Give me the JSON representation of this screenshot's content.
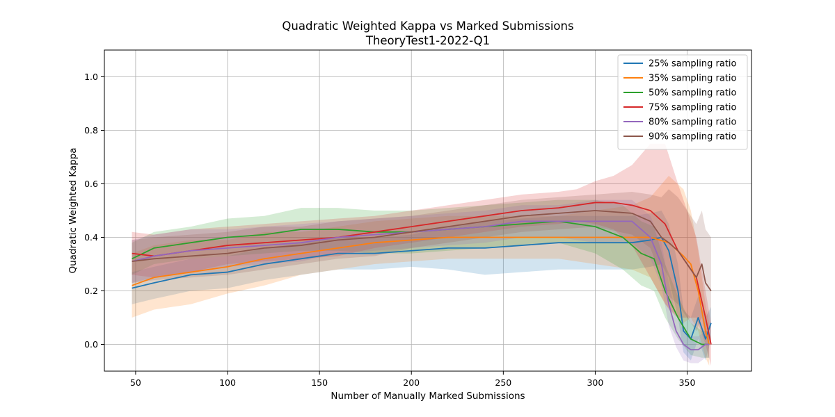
{
  "chart_data": {
    "type": "line",
    "title": "Quadratic Weighted Kappa vs Marked Submissions",
    "subtitle": "TheoryTest1-2022-Q1",
    "xlabel": "Number of Manually Marked Submissions",
    "ylabel": "Quadratic Weighted Kappa",
    "xlim": [
      33,
      385
    ],
    "ylim": [
      -0.1,
      1.1
    ],
    "xticks": [
      50,
      100,
      150,
      200,
      250,
      300,
      350
    ],
    "yticks": [
      0.0,
      0.2,
      0.4,
      0.6,
      0.8,
      1.0
    ],
    "grid": true,
    "legend_position": "top-right",
    "series": [
      {
        "name": "25% sampling ratio",
        "color": "#1f77b4",
        "x": [
          48,
          60,
          80,
          100,
          120,
          140,
          160,
          180,
          200,
          220,
          240,
          260,
          280,
          300,
          320,
          330,
          336,
          340,
          345,
          348,
          352,
          356,
          360,
          363
        ],
        "y": [
          0.21,
          0.23,
          0.26,
          0.27,
          0.3,
          0.32,
          0.34,
          0.34,
          0.35,
          0.36,
          0.36,
          0.37,
          0.38,
          0.38,
          0.38,
          0.39,
          0.4,
          0.35,
          0.2,
          0.05,
          0.02,
          0.1,
          0.02,
          0.08
        ],
        "band": [
          0.06,
          0.06,
          0.06,
          0.06,
          0.06,
          0.06,
          0.06,
          0.06,
          0.06,
          0.08,
          0.1,
          0.1,
          0.1,
          0.1,
          0.1,
          0.1,
          0.1,
          0.1,
          0.1,
          0.08,
          0.08,
          0.08,
          0.08,
          0.06
        ]
      },
      {
        "name": "35% sampling ratio",
        "color": "#ff7f0e",
        "x": [
          48,
          60,
          80,
          100,
          120,
          140,
          160,
          180,
          200,
          220,
          240,
          260,
          280,
          300,
          320,
          330,
          340,
          348,
          352,
          356,
          360,
          362
        ],
        "y": [
          0.22,
          0.25,
          0.27,
          0.29,
          0.32,
          0.34,
          0.36,
          0.38,
          0.39,
          0.4,
          0.4,
          0.4,
          0.4,
          0.4,
          0.4,
          0.4,
          0.38,
          0.33,
          0.3,
          0.2,
          0.05,
          0.0
        ],
        "band": [
          0.12,
          0.12,
          0.12,
          0.1,
          0.1,
          0.08,
          0.08,
          0.08,
          0.08,
          0.08,
          0.08,
          0.08,
          0.08,
          0.1,
          0.12,
          0.15,
          0.25,
          0.25,
          0.2,
          0.15,
          0.1,
          0.08
        ]
      },
      {
        "name": "50% sampling ratio",
        "color": "#2ca02c",
        "x": [
          48,
          60,
          80,
          100,
          120,
          140,
          160,
          180,
          200,
          220,
          240,
          260,
          280,
          300,
          315,
          325,
          332,
          338,
          345,
          352,
          358,
          362
        ],
        "y": [
          0.32,
          0.36,
          0.38,
          0.4,
          0.41,
          0.43,
          0.43,
          0.42,
          0.42,
          0.43,
          0.44,
          0.45,
          0.46,
          0.44,
          0.4,
          0.34,
          0.32,
          0.2,
          0.1,
          0.02,
          0.0,
          0.0
        ],
        "band": [
          0.06,
          0.06,
          0.06,
          0.07,
          0.07,
          0.08,
          0.08,
          0.08,
          0.08,
          0.08,
          0.08,
          0.08,
          0.08,
          0.1,
          0.12,
          0.12,
          0.12,
          0.1,
          0.08,
          0.06,
          0.05,
          0.05
        ]
      },
      {
        "name": "75% sampling ratio",
        "color": "#d62728",
        "x": [
          48,
          60,
          80,
          100,
          120,
          140,
          160,
          180,
          200,
          220,
          240,
          260,
          280,
          290,
          300,
          310,
          320,
          330,
          338,
          345,
          350,
          355,
          360,
          363
        ],
        "y": [
          0.34,
          0.33,
          0.35,
          0.37,
          0.38,
          0.39,
          0.4,
          0.42,
          0.44,
          0.46,
          0.48,
          0.5,
          0.51,
          0.52,
          0.53,
          0.53,
          0.52,
          0.5,
          0.45,
          0.35,
          0.3,
          0.25,
          0.1,
          0.0
        ],
        "band": [
          0.08,
          0.08,
          0.08,
          0.07,
          0.07,
          0.07,
          0.07,
          0.06,
          0.06,
          0.06,
          0.06,
          0.06,
          0.06,
          0.06,
          0.08,
          0.1,
          0.15,
          0.25,
          0.3,
          0.25,
          0.2,
          0.15,
          0.1,
          0.08
        ]
      },
      {
        "name": "80% sampling ratio",
        "color": "#9467bd",
        "x": [
          48,
          60,
          80,
          100,
          120,
          140,
          160,
          180,
          200,
          220,
          240,
          260,
          280,
          300,
          320,
          330,
          336,
          340,
          344,
          348,
          352,
          356,
          360,
          362
        ],
        "y": [
          0.31,
          0.33,
          0.35,
          0.36,
          0.37,
          0.38,
          0.4,
          0.41,
          0.42,
          0.43,
          0.44,
          0.46,
          0.46,
          0.46,
          0.46,
          0.4,
          0.3,
          0.15,
          0.05,
          0.0,
          -0.02,
          -0.02,
          0.0,
          0.0
        ],
        "band": [
          0.08,
          0.08,
          0.08,
          0.07,
          0.07,
          0.07,
          0.06,
          0.06,
          0.06,
          0.06,
          0.06,
          0.06,
          0.06,
          0.08,
          0.08,
          0.08,
          0.08,
          0.08,
          0.06,
          0.06,
          0.05,
          0.05,
          0.05,
          0.05
        ]
      },
      {
        "name": "90% sampling ratio",
        "color": "#8c564b",
        "x": [
          48,
          60,
          80,
          100,
          120,
          140,
          160,
          180,
          200,
          220,
          240,
          260,
          280,
          300,
          320,
          330,
          336,
          340,
          345,
          350,
          355,
          358,
          360,
          363
        ],
        "y": [
          0.31,
          0.32,
          0.33,
          0.34,
          0.36,
          0.37,
          0.39,
          0.4,
          0.42,
          0.44,
          0.46,
          0.48,
          0.49,
          0.5,
          0.49,
          0.46,
          0.4,
          0.38,
          0.35,
          0.3,
          0.25,
          0.3,
          0.23,
          0.2
        ],
        "band": [
          0.08,
          0.08,
          0.08,
          0.08,
          0.08,
          0.07,
          0.07,
          0.07,
          0.06,
          0.06,
          0.06,
          0.06,
          0.06,
          0.06,
          0.08,
          0.1,
          0.15,
          0.2,
          0.2,
          0.2,
          0.2,
          0.2,
          0.2,
          0.2
        ]
      }
    ]
  }
}
